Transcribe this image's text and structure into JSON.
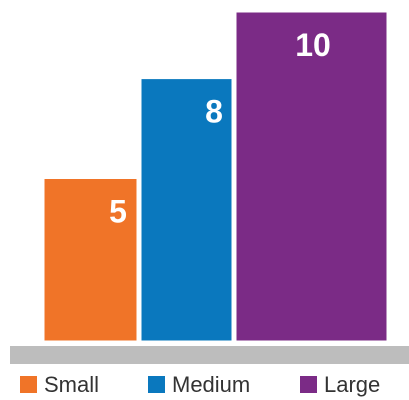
{
  "chart_data": {
    "type": "bar",
    "categories": [
      "Small",
      "Medium",
      "Large"
    ],
    "values": [
      5,
      8,
      10
    ],
    "colors": [
      "#F07428",
      "#0A78BE",
      "#7B2B86"
    ],
    "data_labels": [
      "5",
      "8",
      "10"
    ],
    "ylim": [
      0,
      10
    ],
    "baseline_color": "#BDBDBD",
    "bar_outline_color": "#FFFFFF",
    "grid": false,
    "axes_visible": false,
    "legend": {
      "placement": "bottom",
      "items": [
        {
          "label": "Small",
          "color": "#F07428"
        },
        {
          "label": "Medium",
          "color": "#0A78BE"
        },
        {
          "label": "Large",
          "color": "#7B2B86"
        }
      ]
    },
    "layout_style": "overlapping-step"
  }
}
